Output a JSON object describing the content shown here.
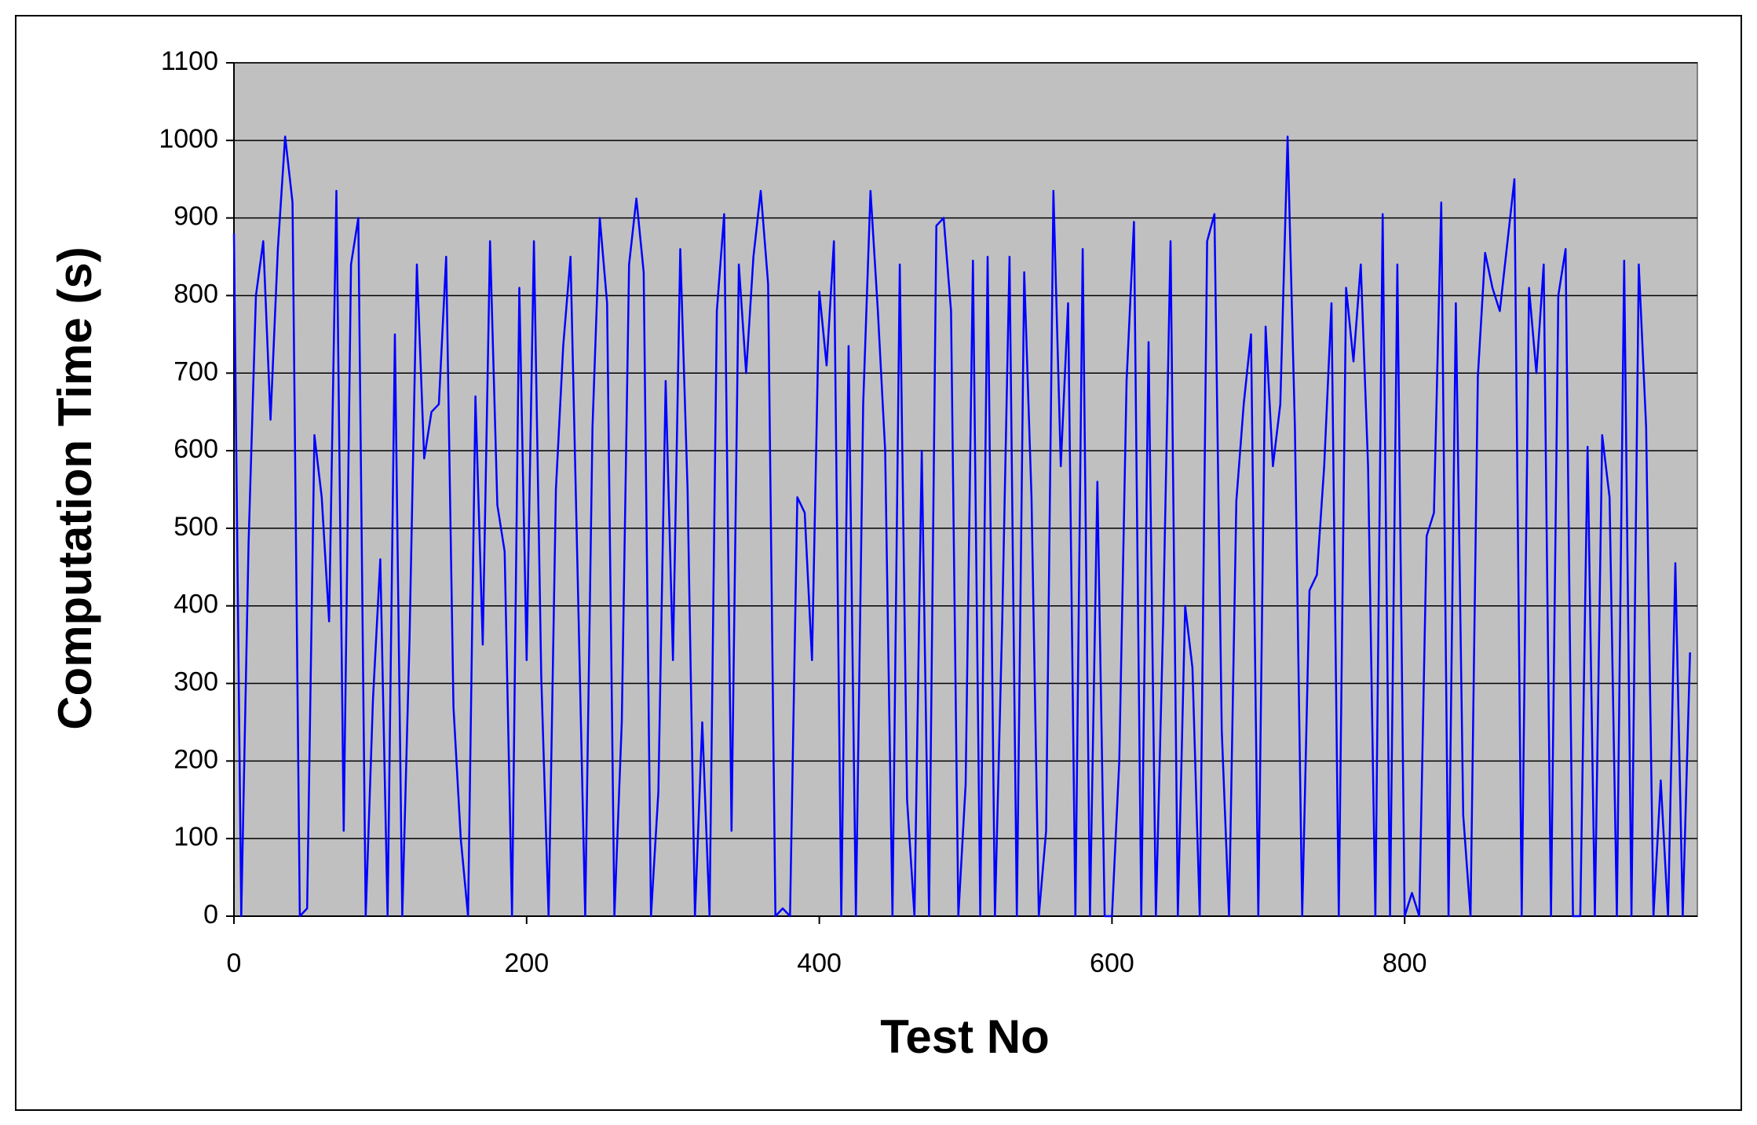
{
  "chart_data": {
    "type": "line",
    "xlabel": "Test No",
    "ylabel": "Computation Time (s)",
    "color": "#0000ff",
    "background": "#c0c0c0",
    "grid": true,
    "xlim": [
      0,
      1000
    ],
    "ylim": [
      0,
      1100
    ],
    "xticks": [
      0,
      200,
      400,
      600,
      800
    ],
    "yticks": [
      0,
      100,
      200,
      300,
      400,
      500,
      600,
      700,
      800,
      900,
      1000,
      1100
    ],
    "x": [
      0,
      5,
      10,
      15,
      20,
      25,
      30,
      35,
      40,
      45,
      50,
      55,
      60,
      65,
      70,
      75,
      80,
      85,
      90,
      95,
      100,
      105,
      110,
      115,
      120,
      125,
      130,
      135,
      140,
      145,
      150,
      155,
      160,
      165,
      170,
      175,
      180,
      185,
      190,
      195,
      200,
      205,
      210,
      215,
      220,
      225,
      230,
      235,
      240,
      245,
      250,
      255,
      260,
      265,
      270,
      275,
      280,
      285,
      290,
      295,
      300,
      305,
      310,
      315,
      320,
      325,
      330,
      335,
      340,
      345,
      350,
      355,
      360,
      365,
      370,
      375,
      380,
      385,
      390,
      395,
      400,
      405,
      410,
      415,
      420,
      425,
      430,
      435,
      440,
      445,
      450,
      455,
      460,
      465,
      470,
      475,
      480,
      485,
      490,
      495,
      500,
      505,
      510,
      515,
      520,
      525,
      530,
      535,
      540,
      545,
      550,
      555,
      560,
      565,
      570,
      575,
      580,
      585,
      590,
      595,
      600,
      605,
      610,
      615,
      620,
      625,
      630,
      635,
      640,
      645,
      650,
      655,
      660,
      665,
      670,
      675,
      680,
      685,
      690,
      695,
      700,
      705,
      710,
      715,
      720,
      725,
      730,
      735,
      740,
      745,
      750,
      755,
      760,
      765,
      770,
      775,
      780,
      785,
      790,
      795,
      800,
      805,
      810,
      815,
      820,
      825,
      830,
      835,
      840,
      845,
      850,
      855,
      860,
      865,
      870,
      875,
      880,
      885,
      890,
      895,
      900,
      905,
      910,
      915,
      920,
      925,
      930,
      935,
      940,
      945,
      950,
      955,
      960,
      965,
      970,
      975,
      980,
      985,
      990,
      995
    ],
    "values": [
      880,
      0,
      480,
      800,
      870,
      640,
      860,
      1005,
      920,
      0,
      10,
      620,
      540,
      380,
      935,
      110,
      840,
      900,
      0,
      280,
      460,
      0,
      750,
      0,
      360,
      840,
      590,
      650,
      660,
      850,
      270,
      100,
      0,
      670,
      350,
      870,
      530,
      470,
      0,
      810,
      330,
      870,
      310,
      0,
      550,
      735,
      850,
      430,
      0,
      630,
      900,
      790,
      0,
      250,
      840,
      925,
      830,
      0,
      160,
      690,
      330,
      860,
      550,
      0,
      250,
      0,
      780,
      905,
      110,
      840,
      700,
      850,
      935,
      815,
      0,
      10,
      0,
      540,
      520,
      330,
      805,
      710,
      870,
      0,
      735,
      0,
      660,
      935,
      780,
      600,
      0,
      840,
      150,
      0,
      600,
      0,
      890,
      900,
      780,
      0,
      170,
      845,
      0,
      850,
      0,
      380,
      850,
      0,
      830,
      540,
      0,
      110,
      935,
      580,
      790,
      0,
      860,
      0,
      560,
      0,
      0,
      200,
      690,
      895,
      0,
      740,
      0,
      380,
      870,
      0,
      400,
      320,
      0,
      870,
      905,
      240,
      0,
      535,
      660,
      750,
      0,
      760,
      580,
      660,
      1005,
      630,
      0,
      420,
      440,
      580,
      790,
      0,
      810,
      715,
      840,
      580,
      0,
      905,
      0,
      840,
      0,
      30,
      0,
      490,
      520,
      920,
      0,
      790,
      130,
      0,
      695,
      855,
      810,
      780,
      865,
      950,
      0,
      810,
      700,
      840,
      0,
      800,
      860,
      0,
      0,
      605,
      0,
      620,
      540,
      0,
      845,
      0,
      840,
      630,
      0,
      175,
      0,
      455,
      0,
      340
    ]
  }
}
